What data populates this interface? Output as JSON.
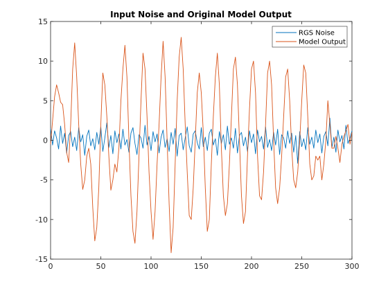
{
  "chart_data": {
    "type": "line",
    "title": "Input Noise and Original Model Output",
    "xlabel": "",
    "ylabel": "",
    "xlim": [
      0,
      300
    ],
    "ylim": [
      -15,
      15
    ],
    "xticks": [
      0,
      50,
      100,
      150,
      200,
      250,
      300
    ],
    "yticks": [
      -15,
      -10,
      -5,
      0,
      5,
      10,
      15
    ],
    "grid": false,
    "legend_position": "top-right",
    "series": [
      {
        "name": "RGS Noise",
        "color": "#0072BD",
        "x": [
          0,
          2,
          4,
          6,
          8,
          10,
          12,
          14,
          16,
          18,
          20,
          22,
          24,
          26,
          28,
          30,
          32,
          34,
          36,
          38,
          40,
          42,
          44,
          46,
          48,
          50,
          52,
          54,
          56,
          58,
          60,
          62,
          64,
          66,
          68,
          70,
          72,
          74,
          76,
          78,
          80,
          82,
          84,
          86,
          88,
          90,
          92,
          94,
          96,
          98,
          100,
          102,
          104,
          106,
          108,
          110,
          112,
          114,
          116,
          118,
          120,
          122,
          124,
          126,
          128,
          130,
          132,
          134,
          136,
          138,
          140,
          142,
          144,
          146,
          148,
          150,
          152,
          154,
          156,
          158,
          160,
          162,
          164,
          166,
          168,
          170,
          172,
          174,
          176,
          178,
          180,
          182,
          184,
          186,
          188,
          190,
          192,
          194,
          196,
          198,
          200,
          202,
          204,
          206,
          208,
          210,
          212,
          214,
          216,
          218,
          220,
          222,
          224,
          226,
          228,
          230,
          232,
          234,
          236,
          238,
          240,
          242,
          244,
          246,
          248,
          250,
          252,
          254,
          256,
          258,
          260,
          262,
          264,
          266,
          268,
          270,
          272,
          274,
          276,
          278,
          280,
          282,
          284,
          286,
          288,
          290,
          292,
          294,
          296,
          298,
          300
        ],
        "y": [
          1.5,
          -0.6,
          1.2,
          0.3,
          -1.1,
          1.8,
          -0.4,
          0.9,
          -1.6,
          0.6,
          1.1,
          -0.8,
          0.4,
          -1.3,
          1.6,
          -0.2,
          0.7,
          -1.9,
          0.5,
          1.3,
          -0.7,
          0.2,
          -1.2,
          1.0,
          -0.5,
          1.7,
          -1.4,
          0.3,
          2.2,
          -0.9,
          0.6,
          -1.7,
          1.2,
          -0.3,
          0.8,
          -1.1,
          1.4,
          -0.6,
          0.1,
          -1.5,
          0.9,
          1.6,
          -0.4,
          -1.8,
          0.7,
          0.3,
          -1.0,
          1.9,
          -0.6,
          0.5,
          -1.3,
          1.1,
          -0.2,
          0.8,
          -1.6,
          0.4,
          1.3,
          -0.9,
          0.2,
          -1.4,
          1.0,
          -0.5,
          1.5,
          -2.0,
          0.6,
          0.9,
          -1.2,
          0.3,
          1.7,
          -0.7,
          -1.5,
          0.8,
          1.2,
          -0.3,
          -1.1,
          1.6,
          -0.8,
          0.4,
          -1.3,
          0.9,
          1.4,
          -0.6,
          0.2,
          -1.9,
          1.1,
          -0.4,
          0.7,
          -1.2,
          1.8,
          -0.5,
          0.3,
          -1.0,
          1.5,
          -1.6,
          0.6,
          1.0,
          -0.7,
          0.4,
          -1.4,
          1.2,
          -0.3,
          0.8,
          -1.7,
          1.3,
          -0.2,
          0.5,
          -1.1,
          1.7,
          -0.9,
          0.1,
          -1.3,
          1.0,
          -0.6,
          1.4,
          -1.8,
          0.7,
          0.3,
          -1.0,
          1.2,
          -0.4,
          0.9,
          -1.5,
          0.6,
          -2.9,
          1.1,
          -0.8,
          0.2,
          -1.2,
          1.6,
          -0.5,
          0.4,
          -1.0,
          1.3,
          -0.3,
          0.8,
          -1.6,
          0.5,
          1.1,
          -0.7,
          2.8,
          -0.9,
          0.4,
          -1.5,
          1.3,
          -0.2,
          0.6,
          -1.1,
          1.9,
          -0.4,
          0.3,
          1.2
        ]
      },
      {
        "name": "Model Output",
        "color": "#D95319",
        "x": [
          0,
          2,
          4,
          6,
          8,
          10,
          12,
          14,
          16,
          18,
          20,
          22,
          24,
          26,
          28,
          30,
          32,
          34,
          36,
          38,
          40,
          42,
          44,
          46,
          48,
          50,
          52,
          54,
          56,
          58,
          60,
          62,
          64,
          66,
          68,
          70,
          72,
          74,
          76,
          78,
          80,
          82,
          84,
          86,
          88,
          90,
          92,
          94,
          96,
          98,
          100,
          102,
          104,
          106,
          108,
          110,
          112,
          114,
          116,
          118,
          120,
          122,
          124,
          126,
          128,
          130,
          132,
          134,
          136,
          138,
          140,
          142,
          144,
          146,
          148,
          150,
          152,
          154,
          156,
          158,
          160,
          162,
          164,
          166,
          168,
          170,
          172,
          174,
          176,
          178,
          180,
          182,
          184,
          186,
          188,
          190,
          192,
          194,
          196,
          198,
          200,
          202,
          204,
          206,
          208,
          210,
          212,
          214,
          216,
          218,
          220,
          222,
          224,
          226,
          228,
          230,
          232,
          234,
          236,
          238,
          240,
          242,
          244,
          246,
          248,
          250,
          252,
          254,
          256,
          258,
          260,
          262,
          264,
          266,
          268,
          270,
          272,
          274,
          276,
          278,
          280,
          282,
          284,
          286,
          288,
          290,
          292,
          294,
          296,
          298,
          300
        ],
        "y": [
          -0.5,
          2.5,
          5.5,
          7.0,
          6.0,
          4.8,
          4.5,
          2.0,
          -1.5,
          -2.8,
          2.0,
          9.0,
          12.3,
          8.0,
          2.0,
          -3.0,
          -6.2,
          -5.0,
          -2.0,
          -1.0,
          -3.0,
          -8.5,
          -12.7,
          -11.0,
          -6.0,
          2.0,
          8.5,
          7.0,
          3.0,
          -2.0,
          -6.3,
          -5.0,
          -3.0,
          -4.0,
          -1.0,
          5.0,
          9.0,
          12.0,
          8.0,
          0.0,
          -7.0,
          -11.5,
          -13.0,
          -9.0,
          -2.0,
          5.0,
          11.0,
          9.0,
          3.0,
          -4.0,
          -9.0,
          -12.5,
          -9.0,
          -3.0,
          2.0,
          8.0,
          12.5,
          8.0,
          0.0,
          -8.0,
          -14.2,
          -11.0,
          -3.0,
          5.0,
          10.5,
          13.0,
          9.0,
          2.0,
          -4.0,
          -9.5,
          -10.0,
          -6.0,
          0.0,
          6.0,
          8.5,
          6.0,
          1.0,
          -6.0,
          -11.5,
          -10.0,
          -3.0,
          3.0,
          8.0,
          11.0,
          7.0,
          -1.0,
          -7.0,
          -9.5,
          -8.0,
          -3.0,
          3.0,
          9.0,
          10.5,
          7.0,
          0.0,
          -7.0,
          -10.5,
          -9.0,
          -2.0,
          4.0,
          9.0,
          10.0,
          6.0,
          -2.0,
          -7.0,
          -7.5,
          -4.0,
          2.0,
          8.5,
          10.0,
          7.0,
          0.0,
          -6.0,
          -8.0,
          -6.0,
          -2.0,
          3.0,
          8.0,
          9.0,
          5.0,
          -1.0,
          -5.0,
          -6.0,
          -4.0,
          0.0,
          5.0,
          9.5,
          8.5,
          3.0,
          -3.0,
          -5.0,
          -4.5,
          -2.0,
          -2.5,
          -2.0,
          -5.0,
          -3.0,
          0.0,
          5.0,
          2.0,
          -1.0,
          -1.0,
          0.5,
          -1.0,
          -2.8,
          -0.5,
          0.5,
          1.2,
          2.0,
          -0.5,
          1.0
        ]
      }
    ]
  }
}
